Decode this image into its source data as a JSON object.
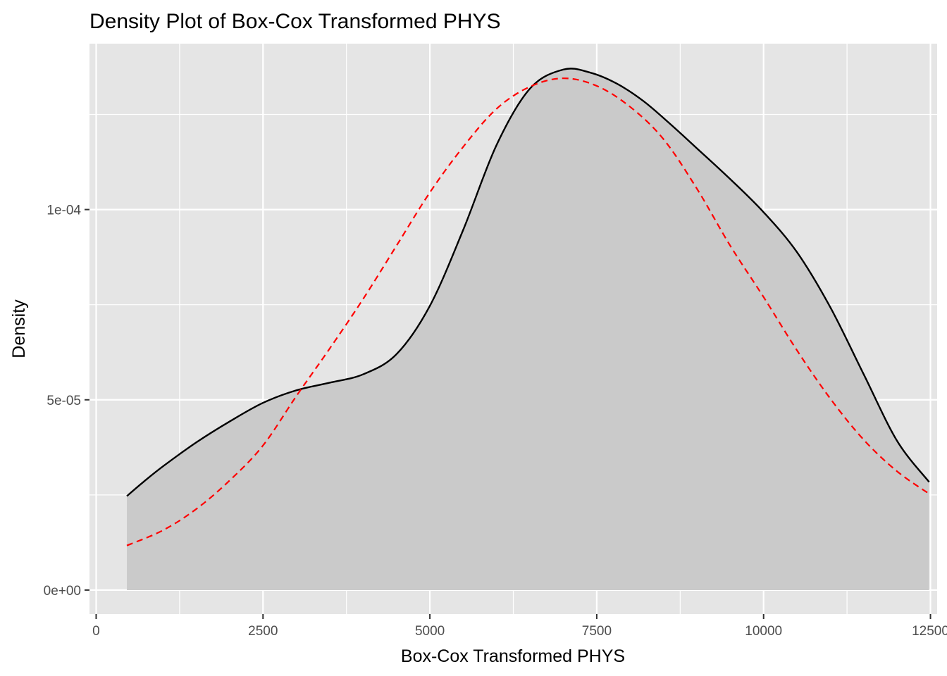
{
  "chart_data": {
    "type": "area",
    "title": "Density Plot of Box-Cox Transformed PHYS",
    "xlabel": "Box-Cox Transformed PHYS",
    "ylabel": "Density",
    "xlim": [
      -100,
      12600
    ],
    "ylim": [
      -6.3e-06,
      0.0001436
    ],
    "x_ticks": [
      {
        "value": 0,
        "label": "0"
      },
      {
        "value": 2500,
        "label": "2500"
      },
      {
        "value": 5000,
        "label": "5000"
      },
      {
        "value": 7500,
        "label": "7500"
      },
      {
        "value": 10000,
        "label": "10000"
      },
      {
        "value": 12500,
        "label": "12500"
      }
    ],
    "y_ticks": [
      {
        "value": 0,
        "label": "0e+00"
      },
      {
        "value": 5e-05,
        "label": "5e-05"
      },
      {
        "value": 0.0001,
        "label": "1e-04"
      }
    ],
    "x_minor_ticks": [
      1250,
      3750,
      6250,
      8750,
      11250
    ],
    "y_minor_ticks": [
      2.5e-05,
      7.5e-05,
      0.000125
    ],
    "grid": true,
    "legend": "none",
    "colors": {
      "panel_bg": "#e5e5e5",
      "grid": "#ffffff",
      "density_fill": "#cacaca",
      "density_line": "#000000",
      "normal_curve": "#ff0000",
      "tick_text": "#4d4d4d",
      "tick_mark": "#333333"
    },
    "series": [
      {
        "style": "area-solid",
        "x": [
          460,
          700,
          1000,
          1500,
          2000,
          2500,
          3000,
          3500,
          4000,
          4500,
          5000,
          5500,
          6000,
          6500,
          7000,
          7400,
          7800,
          8200,
          8600,
          9000,
          9500,
          10000,
          10500,
          11000,
          11500,
          12000,
          12480
        ],
        "y": [
          2.47e-05,
          2.83e-05,
          3.25e-05,
          3.88e-05,
          4.43e-05,
          4.92e-05,
          5.25e-05,
          5.45e-05,
          5.67e-05,
          6.2e-05,
          7.47e-05,
          9.47e-05,
          0.000117,
          0.0001318,
          0.0001368,
          0.000136,
          0.0001331,
          0.0001285,
          0.0001225,
          0.0001161,
          0.000108,
          9.93e-05,
          8.88e-05,
          7.43e-05,
          5.67e-05,
          3.92e-05,
          2.84e-05
        ]
      },
      {
        "style": "normal-dashed",
        "x": [
          460,
          1000,
          1500,
          2000,
          2500,
          3000,
          3500,
          4000,
          4500,
          5000,
          5500,
          6000,
          6500,
          7000,
          7500,
          8000,
          8500,
          9000,
          9500,
          10000,
          10500,
          11000,
          11500,
          12000,
          12480
        ],
        "y": [
          1.17e-05,
          1.57e-05,
          2.13e-05,
          2.88e-05,
          3.8e-05,
          5.1e-05,
          6.35e-05,
          7.65e-05,
          9.05e-05,
          0.0001045,
          0.0001165,
          0.0001265,
          0.0001323,
          0.0001345,
          0.0001325,
          0.000127,
          0.0001185,
          0.0001055,
          9.05e-05,
          7.7e-05,
          6.3e-05,
          5.03e-05,
          3.95e-05,
          3.12e-05,
          2.53e-05
        ]
      }
    ]
  }
}
